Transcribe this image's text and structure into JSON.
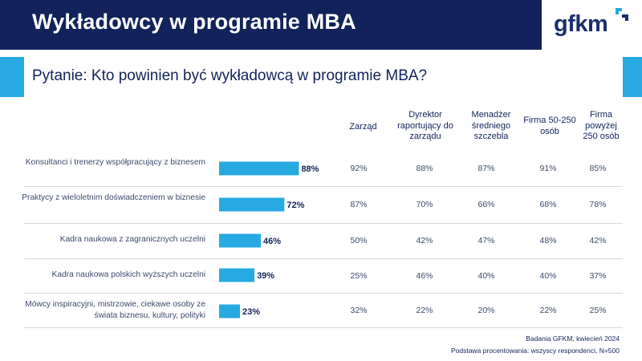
{
  "header": {
    "title": "Wykładowcy w programie MBA",
    "logo_text": "gfkm"
  },
  "question": "Pytanie: Kto powinien być wykładowcą w programie MBA?",
  "columns": [
    "Zarząd",
    "Dyrektor raportujący do zarządu",
    "Menadżer średniego szczebla",
    "Firma 50-250 osób",
    "Firma powyżej 250 osób"
  ],
  "rows": [
    {
      "label": "Konsultanci i trenerzy współpracujący z biznesem",
      "total": "88%",
      "cells": [
        "92%",
        "88%",
        "87%",
        "91%",
        "85%"
      ]
    },
    {
      "label": "Praktycy z wieloletnim doświadczeniem w biznesie",
      "total": "72%",
      "cells": [
        "87%",
        "70%",
        "66%",
        "68%",
        "78%"
      ]
    },
    {
      "label": "Kadra naukowa z zagranicznych uczelni",
      "total": "46%",
      "cells": [
        "50%",
        "42%",
        "47%",
        "48%",
        "42%"
      ]
    },
    {
      "label": "Kadra naukowa polskich wyższych uczelni",
      "total": "39%",
      "cells": [
        "25%",
        "46%",
        "40%",
        "40%",
        "37%"
      ]
    },
    {
      "label": "Mówcy inspiracyjni, mistrzowie, ciekawe osoby ze świata biznesu, kultury, polityki",
      "total": "23%",
      "cells": [
        "32%",
        "22%",
        "20%",
        "22%",
        "25%"
      ]
    }
  ],
  "chart_data": {
    "type": "bar",
    "orientation": "horizontal",
    "categories": [
      "Konsultanci i trenerzy współpracujący z biznesem",
      "Praktycy z wieloletnim doświadczeniem w biznesie",
      "Kadra naukowa z zagranicznych uczelni",
      "Kadra naukowa polskich wyższych uczelni",
      "Mówcy inspiracyjni, mistrzowie, ciekawe osoby ze świata biznesu, kultury, polityki"
    ],
    "values": [
      88,
      72,
      46,
      39,
      23
    ],
    "xlim": [
      0,
      100
    ],
    "unit": "%",
    "color": "#27a9e1",
    "title": "",
    "xlabel": "",
    "ylabel": ""
  },
  "footer": {
    "source": "Badania GFKM, kwiecień 2024",
    "base": "Podstawa procentowania: wszyscy respondenci, N=500"
  },
  "colors": {
    "navy": "#11235a",
    "accent": "#27a9e1",
    "text": "#3b4a6b"
  }
}
